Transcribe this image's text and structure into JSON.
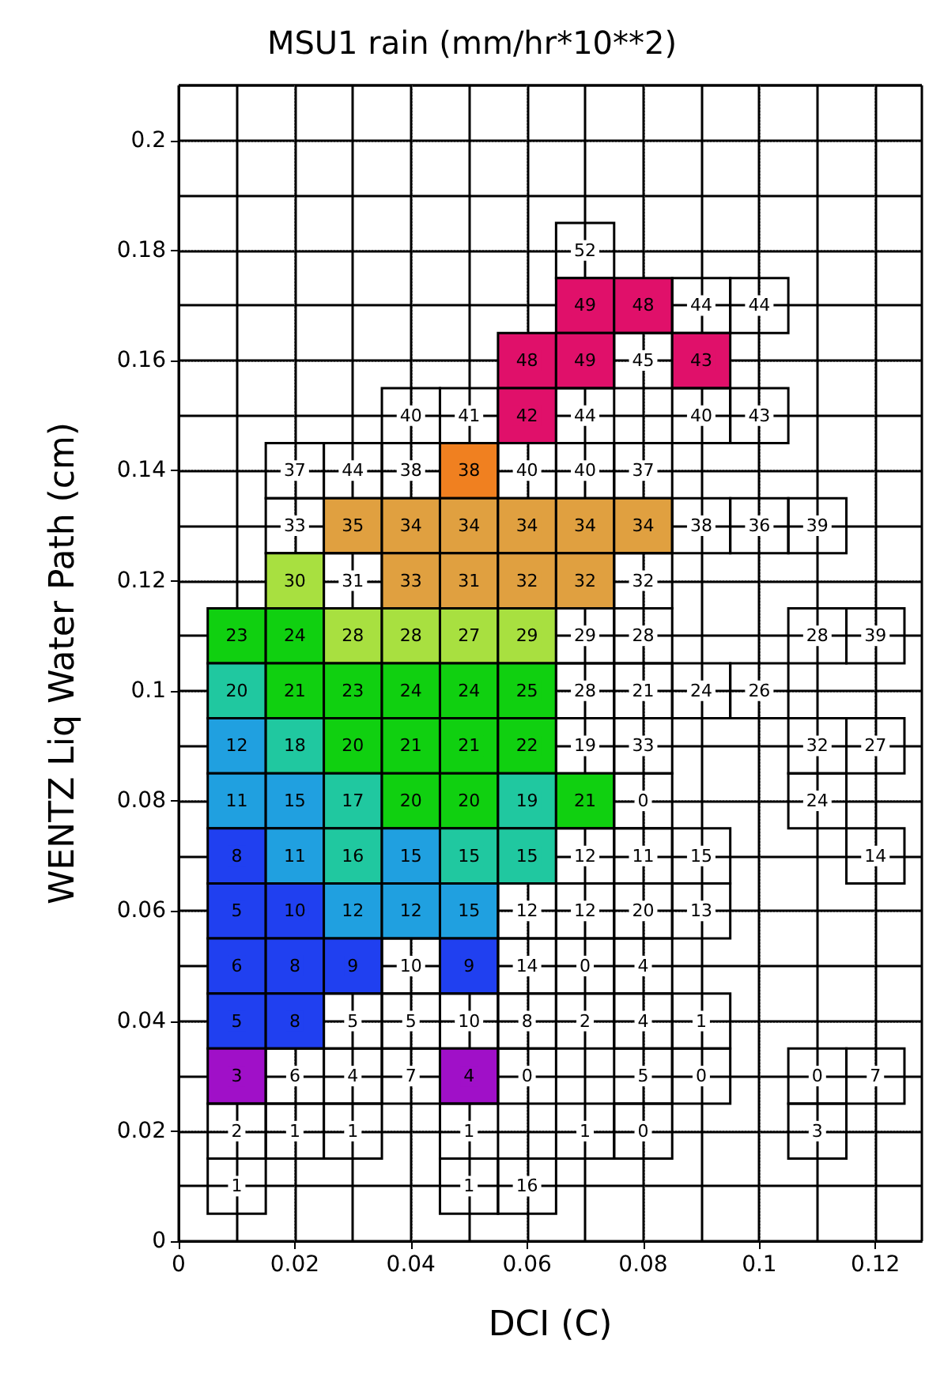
{
  "chart_data": {
    "type": "heatmap",
    "title": "MSU1 rain (mm/hr*10**2)",
    "xlabel": "DCI (C)",
    "ylabel": "WENTZ Liq Water Path (cm)",
    "x": [
      0.01,
      0.02,
      0.03,
      0.04,
      0.05,
      0.06,
      0.07,
      0.08,
      0.09,
      0.1,
      0.11,
      0.12
    ],
    "y": [
      0.18,
      0.17,
      0.16,
      0.15,
      0.14,
      0.13,
      0.12,
      0.11,
      0.1,
      0.09,
      0.08,
      0.07,
      0.06,
      0.05,
      0.04,
      0.03,
      0.02,
      0.01
    ],
    "cells": [
      [
        null,
        null,
        null,
        null,
        null,
        null,
        52,
        null,
        null,
        null,
        null,
        null
      ],
      [
        null,
        null,
        null,
        null,
        null,
        null,
        49,
        48,
        44,
        44,
        null,
        null
      ],
      [
        null,
        null,
        null,
        null,
        null,
        48,
        49,
        45,
        43,
        null,
        null,
        null
      ],
      [
        null,
        null,
        null,
        40,
        41,
        42,
        44,
        null,
        40,
        43,
        null,
        null
      ],
      [
        null,
        37,
        44,
        38,
        38,
        40,
        40,
        37,
        null,
        null,
        null,
        null
      ],
      [
        null,
        33,
        35,
        34,
        34,
        34,
        34,
        34,
        38,
        36,
        39,
        null
      ],
      [
        null,
        30,
        31,
        33,
        31,
        32,
        32,
        32,
        null,
        null,
        null,
        null
      ],
      [
        23,
        24,
        28,
        28,
        27,
        29,
        29,
        28,
        null,
        null,
        28,
        39
      ],
      [
        20,
        21,
        23,
        24,
        24,
        25,
        28,
        21,
        24,
        26,
        null,
        null
      ],
      [
        12,
        18,
        20,
        21,
        21,
        22,
        19,
        33,
        null,
        null,
        32,
        27
      ],
      [
        11,
        15,
        17,
        20,
        20,
        19,
        21,
        0,
        null,
        null,
        24,
        null
      ],
      [
        8,
        11,
        16,
        15,
        15,
        15,
        12,
        11,
        15,
        null,
        null,
        14
      ],
      [
        5,
        10,
        12,
        12,
        15,
        12,
        12,
        20,
        13,
        null,
        null,
        null
      ],
      [
        6,
        8,
        9,
        10,
        9,
        14,
        0,
        4,
        null,
        null,
        null,
        null
      ],
      [
        5,
        8,
        5,
        5,
        10,
        8,
        2,
        4,
        1,
        null,
        null,
        null
      ],
      [
        3,
        6,
        4,
        7,
        4,
        0,
        null,
        5,
        0,
        null,
        0,
        7
      ],
      [
        2,
        1,
        1,
        null,
        1,
        null,
        1,
        0,
        null,
        null,
        3,
        null
      ],
      [
        1,
        null,
        null,
        null,
        1,
        16,
        null,
        null,
        null,
        null,
        null,
        null
      ]
    ],
    "colors": [
      [
        null,
        null,
        null,
        null,
        null,
        null,
        null,
        null,
        null,
        null,
        null,
        null
      ],
      [
        null,
        null,
        null,
        null,
        null,
        null,
        "#e0106a",
        "#e0106a",
        null,
        null,
        null,
        null
      ],
      [
        null,
        null,
        null,
        null,
        null,
        "#e0106a",
        "#e0106a",
        null,
        "#e0106a",
        null,
        null,
        null
      ],
      [
        null,
        null,
        null,
        null,
        null,
        "#e0106a",
        null,
        null,
        null,
        null,
        null,
        null
      ],
      [
        null,
        null,
        null,
        null,
        "#f08020",
        null,
        null,
        null,
        null,
        null,
        null,
        null
      ],
      [
        null,
        null,
        "#e0a040",
        "#e0a040",
        "#e0a040",
        "#e0a040",
        "#e0a040",
        "#e0a040",
        null,
        null,
        null,
        null
      ],
      [
        null,
        "#a8e040",
        null,
        "#e0a040",
        "#e0a040",
        "#e0a040",
        "#e0a040",
        null,
        null,
        null,
        null,
        null
      ],
      [
        "#10d010",
        "#10d010",
        "#a8e040",
        "#a8e040",
        "#a8e040",
        "#a8e040",
        null,
        null,
        null,
        null,
        null,
        null
      ],
      [
        "#20c8a0",
        "#10d010",
        "#10d010",
        "#10d010",
        "#10d010",
        "#10d010",
        null,
        null,
        null,
        null,
        null,
        null
      ],
      [
        "#20a0e0",
        "#20c8a0",
        "#10d010",
        "#10d010",
        "#10d010",
        "#10d010",
        null,
        null,
        null,
        null,
        null,
        null
      ],
      [
        "#20a0e0",
        "#20a0e0",
        "#20c8a0",
        "#10d010",
        "#10d010",
        "#20c8a0",
        "#10d010",
        null,
        null,
        null,
        null,
        null
      ],
      [
        "#2040f0",
        "#20a0e0",
        "#20c8a0",
        "#20a0e0",
        "#20c8a0",
        "#20c8a0",
        null,
        null,
        null,
        null,
        null,
        null
      ],
      [
        "#2040f0",
        "#2040f0",
        "#20a0e0",
        "#20a0e0",
        "#20a0e0",
        null,
        null,
        null,
        null,
        null,
        null,
        null
      ],
      [
        "#2040f0",
        "#2040f0",
        "#2040f0",
        null,
        "#2040f0",
        null,
        null,
        null,
        null,
        null,
        null,
        null
      ],
      [
        "#2040f0",
        "#2040f0",
        null,
        null,
        null,
        null,
        null,
        null,
        null,
        null,
        null,
        null
      ],
      [
        "#a010c8",
        null,
        null,
        null,
        "#a010c8",
        null,
        null,
        null,
        null,
        null,
        null,
        null
      ],
      [
        null,
        null,
        null,
        null,
        null,
        null,
        null,
        null,
        null,
        null,
        null,
        null
      ],
      [
        null,
        null,
        null,
        null,
        null,
        null,
        null,
        null,
        null,
        null,
        null,
        null
      ]
    ],
    "data_labels": true,
    "xlim": [
      0,
      0.128
    ],
    "ylim": [
      0,
      0.21
    ],
    "xticks": [
      0,
      0.02,
      0.04,
      0.06,
      0.08,
      0.1,
      0.12
    ],
    "yticks": [
      0,
      0.02,
      0.04,
      0.06,
      0.08,
      0.1,
      0.12,
      0.14,
      0.16,
      0.18,
      0.2
    ],
    "grid": true
  }
}
